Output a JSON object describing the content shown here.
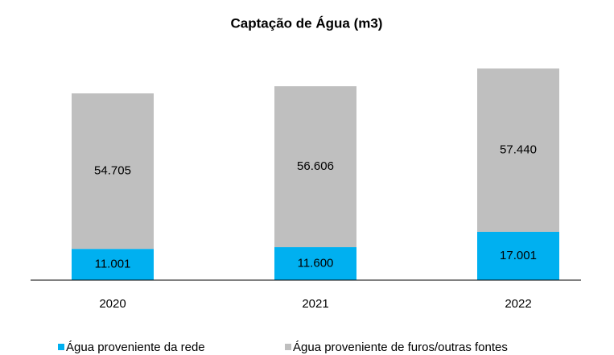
{
  "chart_data": {
    "type": "stacked-bar",
    "title": "Captação de Água (m3)",
    "categories": [
      "2020",
      "2021",
      "2022"
    ],
    "series": [
      {
        "name": "Água proveniente da rede",
        "color": "#00b0f0",
        "values": [
          11001,
          11600,
          17001
        ],
        "value_labels": [
          "11.001",
          "11.600",
          "17.001"
        ]
      },
      {
        "name": "Água proveniente de furos/outras fontes",
        "color": "#bfbfbf",
        "values": [
          54705,
          56606,
          57440
        ],
        "value_labels": [
          "54.705",
          "56.606",
          "57.440"
        ]
      }
    ],
    "ylim": [
      0,
      80000
    ],
    "legend": "bottom"
  }
}
